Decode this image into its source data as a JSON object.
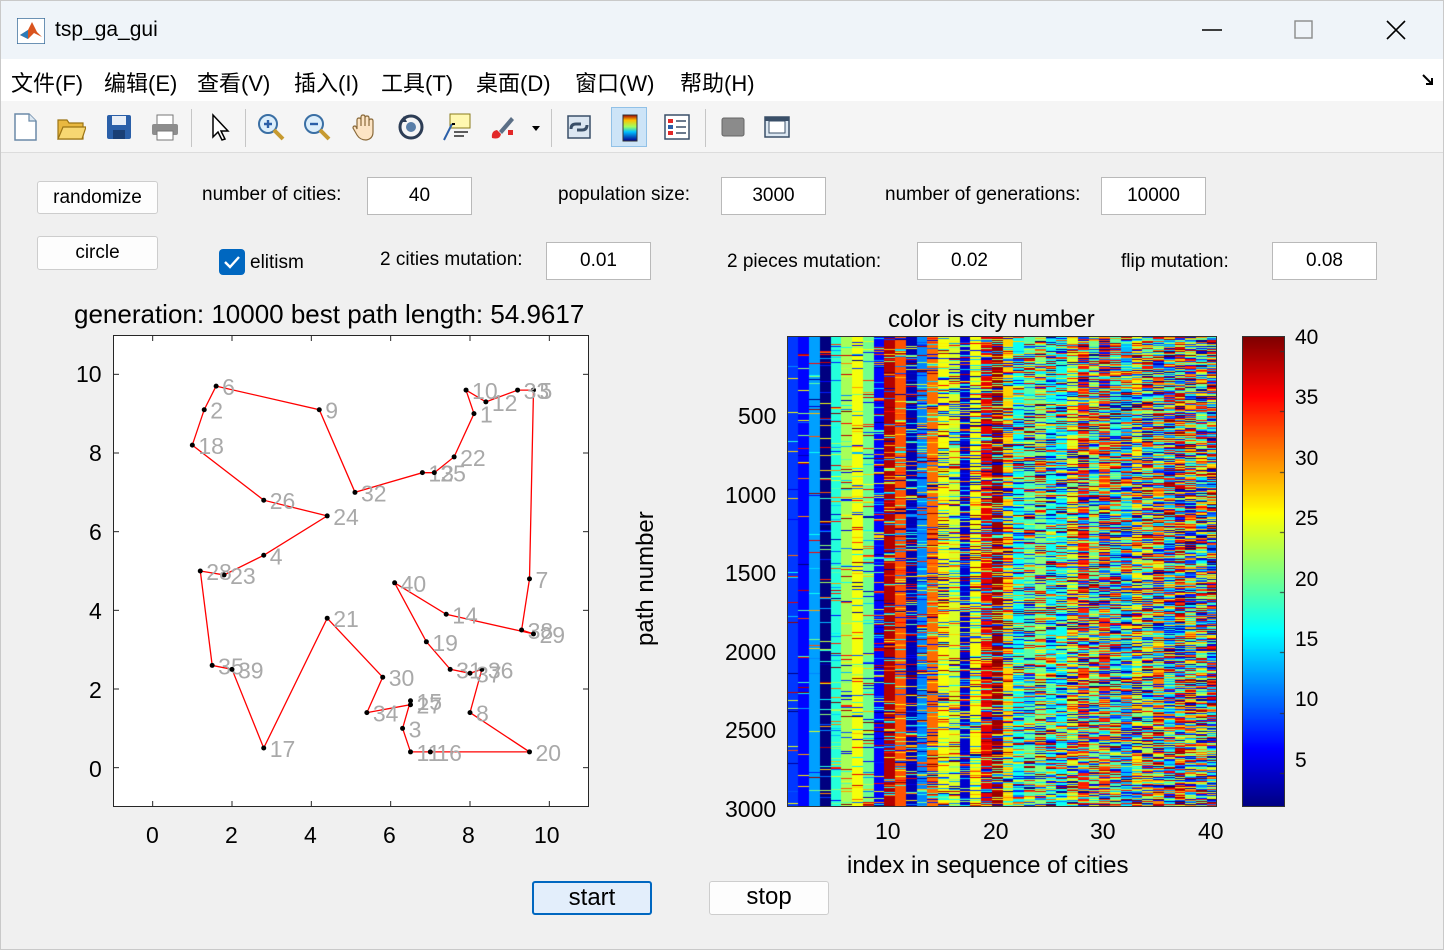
{
  "window": {
    "title": "tsp_ga_gui",
    "minimize_icon": "minimize-icon",
    "maximize_icon": "maximize-icon",
    "close_icon": "close-icon"
  },
  "menu": {
    "items": [
      "文件(F)",
      "编辑(E)",
      "查看(V)",
      "插入(I)",
      "工具(T)",
      "桌面(D)",
      "窗口(W)",
      "帮助(H)"
    ]
  },
  "toolbar": {
    "icons": [
      "new-figure-icon",
      "open-icon",
      "save-icon",
      "print-icon",
      "pointer-icon",
      "zoom-in-icon",
      "zoom-out-icon",
      "pan-hand-icon",
      "rotate-3d-icon",
      "data-cursor-icon",
      "brush-icon",
      "link-plot-icon",
      "colorbar-icon",
      "legend-icon",
      "hide-plot-tools-icon",
      "show-plot-tools-icon"
    ]
  },
  "controls": {
    "randomize_label": "randomize",
    "circle_label": "circle",
    "num_cities_label": "number of cities:",
    "num_cities_value": "40",
    "pop_size_label": "population size:",
    "pop_size_value": "3000",
    "num_gen_label": "number of generations:",
    "num_gen_value": "10000",
    "elitism_label": "elitism",
    "elitism_checked": true,
    "cities_mut_label": "2 cities mutation:",
    "cities_mut_value": "0.01",
    "pieces_mut_label": "2 pieces mutation:",
    "pieces_mut_value": "0.02",
    "flip_mut_label": "flip mutation:",
    "flip_mut_value": "0.08",
    "start_label": "start",
    "stop_label": "stop"
  },
  "colors": {
    "path_line": "#ff0000",
    "city_label": "#a9a9a9",
    "checkbox": "#0067c0",
    "start_button_bg": "#e3eefb",
    "start_button_border": "#0067c0"
  },
  "chart_data": [
    {
      "type": "scatter",
      "title": "generation: 10000  best path length: 54.9617",
      "xlabel": "",
      "ylabel": "",
      "xlim": [
        -1,
        11
      ],
      "ylim": [
        -1,
        11
      ],
      "x_ticks": [
        "0",
        "2",
        "4",
        "6",
        "8",
        "10"
      ],
      "y_ticks": [
        "10",
        "8",
        "6",
        "4",
        "2",
        "0"
      ],
      "grid": false,
      "cities": [
        {
          "n": 1,
          "x": 8.1,
          "y": 9.0
        },
        {
          "n": 2,
          "x": 1.3,
          "y": 9.1
        },
        {
          "n": 3,
          "x": 6.3,
          "y": 1.0
        },
        {
          "n": 4,
          "x": 2.8,
          "y": 5.4
        },
        {
          "n": 5,
          "x": 9.6,
          "y": 9.6
        },
        {
          "n": 6,
          "x": 1.6,
          "y": 9.7
        },
        {
          "n": 7,
          "x": 9.5,
          "y": 4.8
        },
        {
          "n": 8,
          "x": 8.0,
          "y": 1.4
        },
        {
          "n": 9,
          "x": 4.2,
          "y": 9.1
        },
        {
          "n": 10,
          "x": 7.9,
          "y": 9.6
        },
        {
          "n": 11,
          "x": 6.5,
          "y": 0.4
        },
        {
          "n": 12,
          "x": 8.4,
          "y": 9.3
        },
        {
          "n": 13,
          "x": 6.8,
          "y": 7.5
        },
        {
          "n": 14,
          "x": 7.4,
          "y": 3.9
        },
        {
          "n": 15,
          "x": 6.5,
          "y": 1.7
        },
        {
          "n": 16,
          "x": 7.0,
          "y": 0.4
        },
        {
          "n": 17,
          "x": 2.8,
          "y": 0.5
        },
        {
          "n": 18,
          "x": 1.0,
          "y": 8.2
        },
        {
          "n": 19,
          "x": 6.9,
          "y": 3.2
        },
        {
          "n": 20,
          "x": 9.5,
          "y": 0.4
        },
        {
          "n": 21,
          "x": 4.4,
          "y": 3.8
        },
        {
          "n": 22,
          "x": 7.6,
          "y": 7.9
        },
        {
          "n": 23,
          "x": 1.8,
          "y": 4.9
        },
        {
          "n": 24,
          "x": 4.4,
          "y": 6.4
        },
        {
          "n": 25,
          "x": 7.1,
          "y": 7.5
        },
        {
          "n": 26,
          "x": 2.8,
          "y": 6.8
        },
        {
          "n": 27,
          "x": 6.5,
          "y": 1.6
        },
        {
          "n": 28,
          "x": 1.2,
          "y": 5.0
        },
        {
          "n": 29,
          "x": 9.6,
          "y": 3.4
        },
        {
          "n": 30,
          "x": 5.8,
          "y": 2.3
        },
        {
          "n": 31,
          "x": 7.5,
          "y": 2.5
        },
        {
          "n": 32,
          "x": 5.1,
          "y": 7.0
        },
        {
          "n": 33,
          "x": 9.2,
          "y": 9.6
        },
        {
          "n": 34,
          "x": 5.4,
          "y": 1.4
        },
        {
          "n": 35,
          "x": 1.5,
          "y": 2.6
        },
        {
          "n": 36,
          "x": 8.3,
          "y": 2.5
        },
        {
          "n": 37,
          "x": 8.0,
          "y": 2.4
        },
        {
          "n": 38,
          "x": 9.3,
          "y": 3.5
        },
        {
          "n": 39,
          "x": 2.0,
          "y": 2.5
        },
        {
          "n": 40,
          "x": 6.1,
          "y": 4.7
        }
      ],
      "tour": [
        6,
        9,
        32,
        13,
        25,
        22,
        1,
        10,
        12,
        33,
        5,
        7,
        38,
        29,
        14,
        40,
        19,
        31,
        37,
        36,
        8,
        20,
        16,
        11,
        3,
        15,
        27,
        34,
        30,
        21,
        17,
        39,
        35,
        28,
        23,
        4,
        24,
        26,
        18,
        2,
        6
      ]
    },
    {
      "type": "heatmap",
      "title": "color is city number",
      "xlabel": "index in sequence of cities",
      "ylabel": "path number",
      "xlim": [
        1,
        40
      ],
      "ylim": [
        1,
        3000
      ],
      "x_ticks": [
        "10",
        "20",
        "30",
        "40"
      ],
      "y_ticks": [
        "500",
        "1000",
        "1500",
        "2000",
        "2500",
        "3000"
      ],
      "colorbar_ticks": [
        "40",
        "35",
        "30",
        "25",
        "20",
        "15",
        "10",
        "5"
      ],
      "colormap": "jet",
      "clim": [
        1,
        40
      ],
      "column_base_city": [
        8,
        6,
        12,
        1,
        17,
        22,
        25,
        20,
        6,
        38,
        32,
        3,
        11,
        31,
        25,
        24,
        4,
        25,
        36,
        39,
        27,
        16,
        19,
        21,
        16,
        16,
        24,
        34,
        20,
        33,
        18,
        13,
        26,
        22,
        30,
        14,
        37,
        28,
        21,
        10
      ]
    }
  ]
}
